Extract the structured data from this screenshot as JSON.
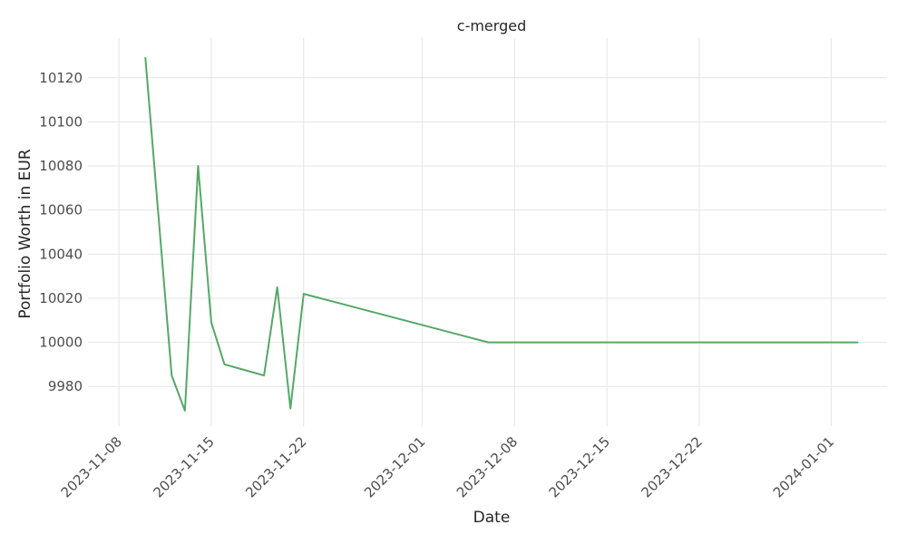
{
  "chart_data": {
    "type": "line",
    "title": "c-merged",
    "xlabel": "Date",
    "ylabel": "Portfolio Worth in EUR",
    "x_ticks": [
      "2023-11-08",
      "2023-11-15",
      "2023-11-22",
      "2023-12-01",
      "2023-12-08",
      "2023-12-15",
      "2023-12-22",
      "2024-01-01"
    ],
    "y_ticks": [
      9980,
      10000,
      10020,
      10040,
      10060,
      10080,
      10100,
      10120
    ],
    "xlim": [
      "2023-11-08",
      "2024-01-05"
    ],
    "ylim": [
      9962,
      10138
    ],
    "grid": true,
    "series_color": "#55a868",
    "series": [
      {
        "x": [
          "2023-11-10",
          "2023-11-12",
          "2023-11-13",
          "2023-11-14",
          "2023-11-15",
          "2023-11-16",
          "2023-11-19",
          "2023-11-20",
          "2023-11-21",
          "2023-11-22",
          "2023-12-06",
          "2024-01-03"
        ],
        "values": [
          10129,
          9985,
          9969,
          10080,
          10009,
          9990,
          9985,
          10025,
          9970,
          10022,
          10000,
          10000
        ]
      }
    ]
  }
}
